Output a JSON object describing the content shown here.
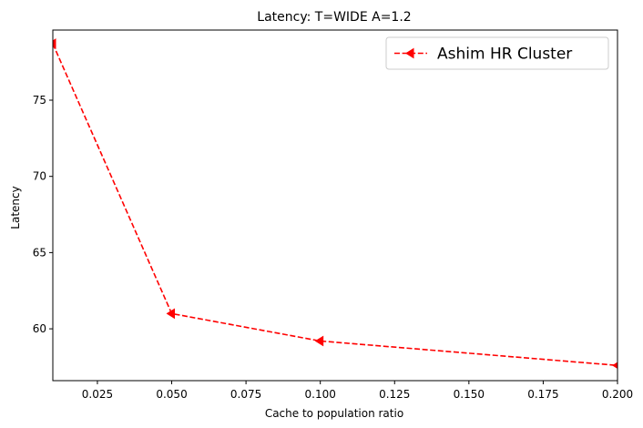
{
  "chart_data": {
    "type": "line",
    "title": "Latency: T=WIDE A=1.2",
    "xlabel": "Cache to population ratio",
    "ylabel": "Latency",
    "xlim": [
      0.01,
      0.2
    ],
    "ylim": [
      56.6,
      79.6
    ],
    "xticks": [
      0.025,
      0.05,
      0.075,
      0.1,
      0.125,
      0.15,
      0.175,
      0.2
    ],
    "xtick_labels": [
      "0.025",
      "0.050",
      "0.075",
      "0.100",
      "0.125",
      "0.150",
      "0.175",
      "0.200"
    ],
    "yticks": [
      60,
      65,
      70,
      75
    ],
    "ytick_labels": [
      "60",
      "65",
      "70",
      "75"
    ],
    "grid": false,
    "legend_position": "top-right",
    "series": [
      {
        "name": "Ashim HR Cluster",
        "color": "#ff0000",
        "line_style": "dashed",
        "marker": "triangle-left",
        "x": [
          0.01,
          0.05,
          0.1,
          0.2
        ],
        "y": [
          78.7,
          61.0,
          59.2,
          57.6
        ]
      }
    ]
  }
}
